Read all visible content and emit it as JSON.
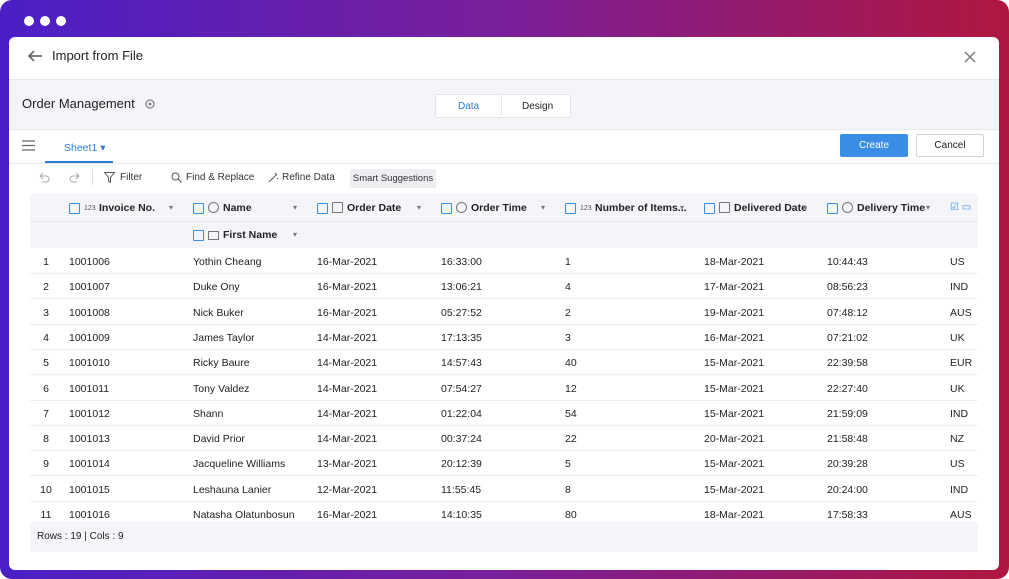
{
  "header": {
    "title": "Import from File"
  },
  "project": {
    "name": "Order Management"
  },
  "tabs": [
    "Data",
    "Design"
  ],
  "sheet": "Sheet1",
  "buttons": {
    "create": "Create",
    "cancel": "Cancel"
  },
  "toolbar": [
    "Filter",
    "Find & Replace",
    "Refine Data",
    "Smart Suggestions"
  ],
  "table": {
    "columns": [
      {
        "label": "Invoice No.",
        "type": "123"
      },
      {
        "label": "Name"
      },
      {
        "label": "Order Date"
      },
      {
        "label": "Order Time"
      },
      {
        "label": "Number of Items...",
        "type": "123"
      },
      {
        "label": "Delivered Date"
      },
      {
        "label": "Delivery Time"
      }
    ],
    "subcolumns": [
      "First Name"
    ],
    "rows": [
      [
        "1",
        "1001006",
        "Yothin Cheang",
        "16-Mar-2021",
        "16:33:00",
        "1",
        "18-Mar-2021",
        "10:44:43",
        "US"
      ],
      [
        "2",
        "1001007",
        "Duke Ony",
        "16-Mar-2021",
        "13:06:21",
        "4",
        "17-Mar-2021",
        "08:56:23",
        "IND"
      ],
      [
        "3",
        "1001008",
        "Nick Buker",
        "16-Mar-2021",
        "05:27:52",
        "2",
        "19-Mar-2021",
        "07:48:12",
        "AUS"
      ],
      [
        "4",
        "1001009",
        "James Taylor",
        "14-Mar-2021",
        "17:13:35",
        "3",
        "16-Mar-2021",
        "07:21:02",
        "UK"
      ],
      [
        "5",
        "1001010",
        "Ricky Baure",
        "14-Mar-2021",
        "14:57:43",
        "40",
        "15-Mar-2021",
        "22:39:58",
        "EUR"
      ],
      [
        "6",
        "1001011",
        "Tony Valdez",
        "14-Mar-2021",
        "07:54:27",
        "12",
        "15-Mar-2021",
        "22:27:40",
        "UK"
      ],
      [
        "7",
        "1001012",
        "Shann",
        "14-Mar-2021",
        "01:22:04",
        "54",
        "15-Mar-2021",
        "21:59:09",
        "IND"
      ],
      [
        "8",
        "1001013",
        "David Prior",
        "14-Mar-2021",
        "00:37:24",
        "22",
        "20-Mar-2021",
        "21:58:48",
        "NZ"
      ],
      [
        "9",
        "1001014",
        "Jacqueline Williams",
        "13-Mar-2021",
        "20:12:39",
        "5",
        "15-Mar-2021",
        "20:39:28",
        "US"
      ],
      [
        "10",
        "1001015",
        "Leshauna Lanier",
        "12-Mar-2021",
        "11:55:45",
        "8",
        "15-Mar-2021",
        "20:24:00",
        "IND"
      ],
      [
        "11",
        "1001016",
        "Natasha Olatunbosun",
        "16-Mar-2021",
        "14:10:35",
        "80",
        "18-Mar-2021",
        "17:58:33",
        "AUS"
      ]
    ]
  },
  "footer": "Rows : 19 | Cols : 9"
}
